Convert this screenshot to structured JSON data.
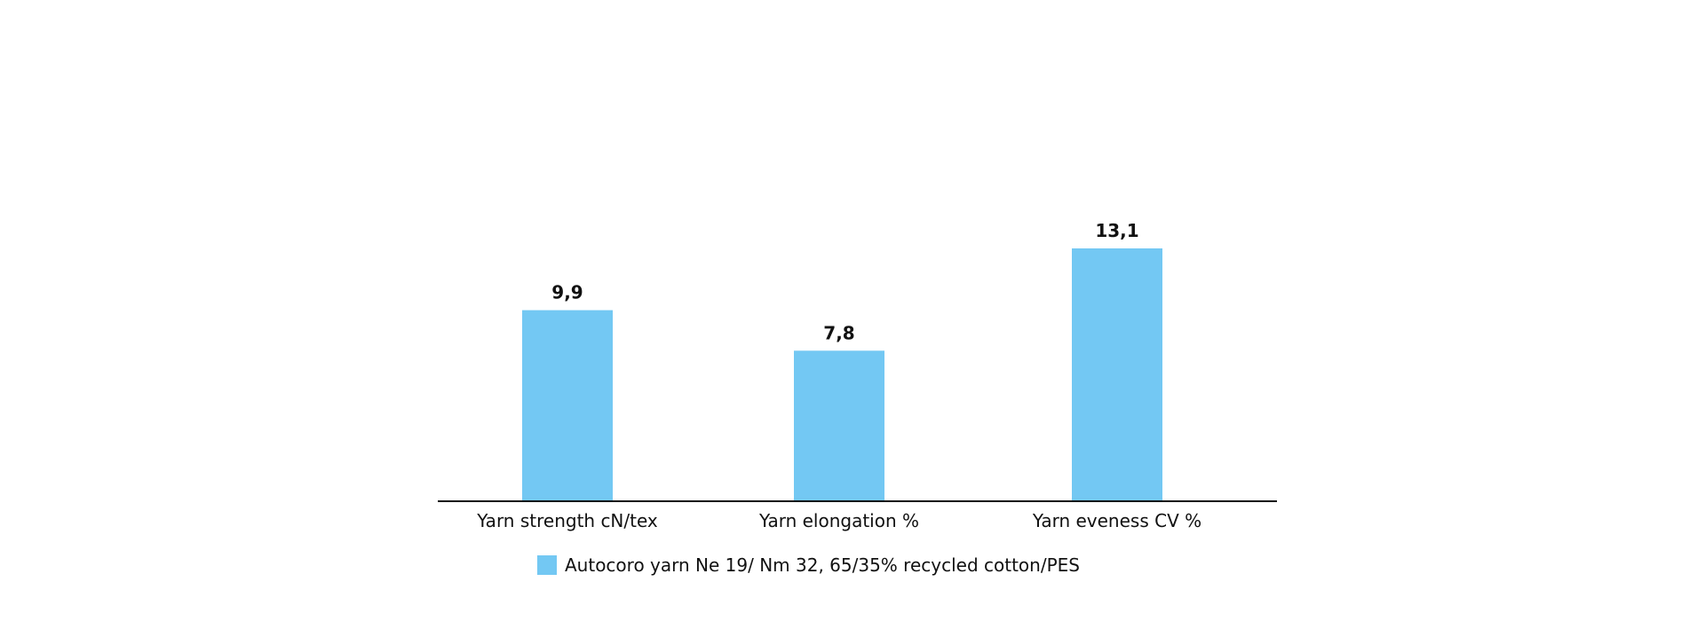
{
  "chart_data": {
    "type": "bar",
    "categories": [
      "Yarn strength cN/tex",
      "Yarn elongation %",
      "Yarn eveness CV %"
    ],
    "series": [
      {
        "name": "Autocoro yarn Ne 19/ Nm 32, 65/35% recycled cotton/PES",
        "values": [
          9.9,
          7.8,
          13.1
        ],
        "value_labels": [
          "9,9",
          "7,8",
          "13,1"
        ],
        "color": "#73C8F3"
      }
    ],
    "ylim": [
      0,
      13.1
    ],
    "grid": false,
    "legend_position": "bottom",
    "axis_color": "#111111"
  }
}
